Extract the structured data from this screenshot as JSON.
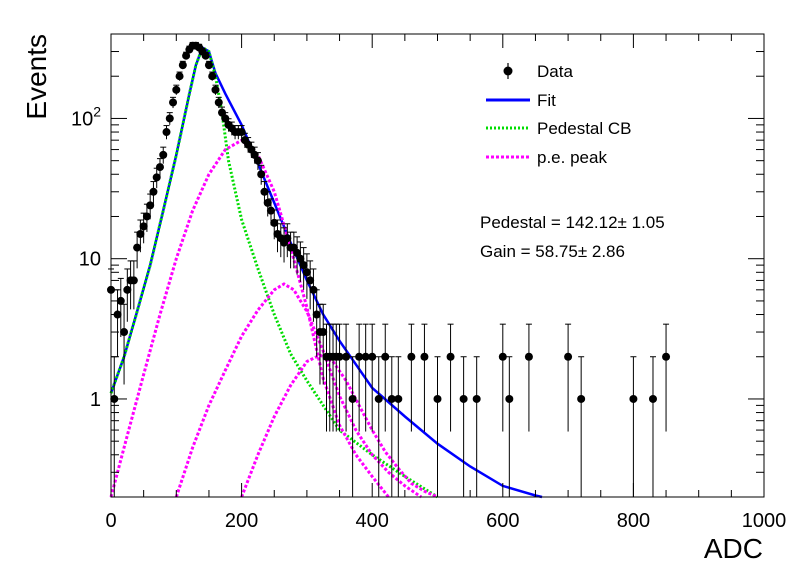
{
  "chart_data": {
    "type": "scatter",
    "xlabel": "ADC",
    "ylabel": "Events",
    "xlim": [
      0,
      1000
    ],
    "ylim": [
      0.2,
      400
    ],
    "yscale": "log",
    "x_ticks": [
      "0",
      "200",
      "400",
      "600",
      "800",
      "1000"
    ],
    "y_ticks": [
      {
        "value": 1,
        "label": "1"
      },
      {
        "value": 10,
        "label": "10"
      },
      {
        "value": 100,
        "label": "10",
        "exp": "2"
      }
    ],
    "grid": false,
    "legend_position": "top-right",
    "legend": [
      {
        "label": "Data",
        "style": "marker-errorbar",
        "color": "#000000"
      },
      {
        "label": "Fit",
        "style": "solid",
        "color": "#0000ff"
      },
      {
        "label": "Pedestal CB",
        "style": "dotted",
        "color": "#00dd00"
      },
      {
        "label": "p.e. peak",
        "style": "dotted",
        "color": "#ff00ff"
      }
    ],
    "annotations": [
      {
        "text": "Pedestal = 142.12± 1.05"
      },
      {
        "text": "Gain = 58.75± 2.86"
      }
    ],
    "data_points": {
      "x": [
        0,
        5,
        10,
        15,
        20,
        25,
        30,
        35,
        40,
        45,
        50,
        55,
        60,
        65,
        70,
        75,
        80,
        85,
        90,
        95,
        100,
        105,
        110,
        115,
        120,
        125,
        130,
        135,
        140,
        145,
        150,
        155,
        160,
        165,
        170,
        175,
        180,
        185,
        190,
        195,
        200,
        205,
        210,
        215,
        220,
        225,
        230,
        235,
        240,
        245,
        250,
        255,
        260,
        265,
        270,
        275,
        280,
        285,
        290,
        295,
        300,
        305,
        310,
        315,
        320,
        325,
        330,
        335,
        340,
        345,
        350,
        360,
        370,
        380,
        390,
        400,
        410,
        420,
        430,
        440,
        460,
        480,
        500,
        520,
        540,
        560,
        600,
        610,
        640,
        700,
        720,
        800,
        830,
        850
      ],
      "y": [
        6,
        1,
        4,
        5,
        3,
        6,
        7,
        7,
        12,
        15,
        17,
        20,
        24,
        30,
        38,
        45,
        55,
        80,
        100,
        130,
        160,
        200,
        240,
        280,
        310,
        330,
        330,
        320,
        300,
        280,
        240,
        200,
        160,
        130,
        110,
        100,
        90,
        85,
        80,
        80,
        80,
        70,
        65,
        60,
        55,
        50,
        40,
        30,
        25,
        22,
        18,
        15,
        14,
        13,
        14,
        12,
        12,
        11,
        10,
        9,
        8,
        7,
        6,
        4,
        3,
        3,
        2,
        2,
        2,
        2,
        2,
        2,
        1,
        2,
        2,
        2,
        1,
        2,
        1,
        1,
        2,
        2,
        1,
        2,
        1,
        1,
        2,
        1,
        2,
        2,
        1,
        1,
        1,
        2
      ]
    },
    "curves": [
      {
        "name": "Fit",
        "color": "#0000ff",
        "x": [
          0,
          20,
          40,
          60,
          80,
          100,
          120,
          130,
          140,
          150,
          160,
          175,
          200,
          225,
          250,
          275,
          300,
          325,
          350,
          400,
          450,
          500,
          550,
          600,
          650,
          660
        ],
        "y": [
          1.1,
          2.0,
          4.2,
          9,
          22,
          55,
          150,
          240,
          320,
          300,
          210,
          150,
          90,
          48,
          25,
          13,
          7,
          4,
          2.6,
          1.2,
          0.75,
          0.48,
          0.33,
          0.24,
          0.205,
          0.2
        ]
      },
      {
        "name": "Pedestal CB",
        "color": "#00dd00",
        "x": [
          0,
          20,
          40,
          60,
          80,
          100,
          120,
          130,
          140,
          150,
          160,
          170,
          180,
          200,
          225,
          250,
          275,
          300,
          325,
          350,
          400,
          450,
          500
        ],
        "y": [
          1.1,
          2.0,
          4.2,
          9,
          22,
          55,
          150,
          240,
          320,
          300,
          200,
          110,
          50,
          19,
          8.5,
          4,
          2.1,
          1.35,
          0.9,
          0.6,
          0.4,
          0.28,
          0.2
        ]
      },
      {
        "name": "p.e. peak 1",
        "color": "#ff00ff",
        "x": [
          0,
          25,
          50,
          75,
          100,
          125,
          150,
          175,
          200,
          225,
          250,
          275,
          300,
          325,
          350,
          375,
          400,
          425
        ],
        "y": [
          0.2,
          0.55,
          1.5,
          4,
          10,
          22,
          40,
          60,
          70,
          55,
          30,
          12,
          4.5,
          1.4,
          0.65,
          0.4,
          0.28,
          0.2
        ]
      },
      {
        "name": "p.e. peak 2",
        "color": "#ff00ff",
        "x": [
          100,
          125,
          150,
          175,
          200,
          225,
          250,
          265,
          280,
          300,
          325,
          350,
          375,
          400,
          425,
          450,
          475
        ],
        "y": [
          0.2,
          0.45,
          0.9,
          1.6,
          2.8,
          4.3,
          6.0,
          6.6,
          6.0,
          4.2,
          2.2,
          1.05,
          0.6,
          0.4,
          0.3,
          0.24,
          0.2
        ]
      },
      {
        "name": "p.e. peak 3",
        "color": "#ff00ff",
        "x": [
          200,
          225,
          250,
          275,
          300,
          320,
          340,
          360,
          380,
          400,
          420,
          440,
          460,
          480,
          500
        ],
        "y": [
          0.2,
          0.4,
          0.75,
          1.25,
          1.85,
          2.05,
          1.85,
          1.35,
          0.9,
          0.6,
          0.42,
          0.32,
          0.25,
          0.22,
          0.2
        ]
      }
    ]
  }
}
